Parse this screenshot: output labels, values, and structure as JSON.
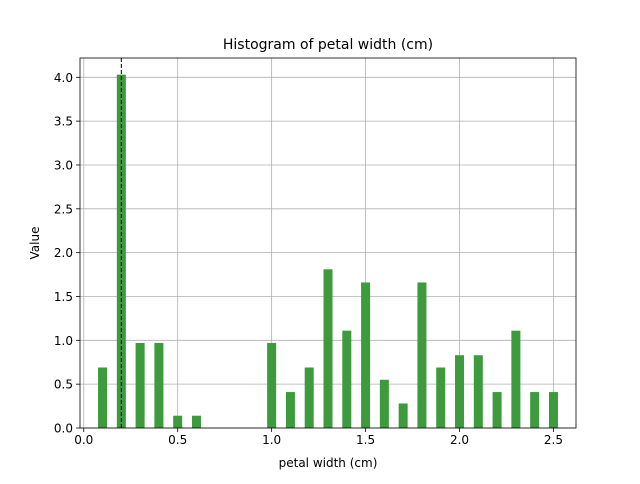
{
  "chart_data": {
    "type": "bar",
    "title": "Histogram of petal width (cm)",
    "xlabel": "petal width (cm)",
    "ylabel": "Value",
    "xlim": [
      -0.02,
      2.62
    ],
    "ylim": [
      0,
      4.22
    ],
    "xticks": [
      0.0,
      0.5,
      1.0,
      1.5,
      2.0,
      2.5
    ],
    "xtick_labels": [
      "0.0",
      "0.5",
      "1.0",
      "1.5",
      "2.0",
      "2.5"
    ],
    "yticks": [
      0.0,
      0.5,
      1.0,
      1.5,
      2.0,
      2.5,
      3.0,
      3.5,
      4.0
    ],
    "ytick_labels": [
      "0.0",
      "0.5",
      "1.0",
      "1.5",
      "2.0",
      "2.5",
      "3.0",
      "3.5",
      "4.0"
    ],
    "grid": true,
    "bar_color": "#3d9b3d",
    "bar_width": 0.048,
    "reference_line": {
      "x": 0.2,
      "style": "dashed",
      "color": "#000000"
    },
    "bins": [
      {
        "x": 0.1,
        "value": 0.69
      },
      {
        "x": 0.2,
        "value": 4.03
      },
      {
        "x": 0.3,
        "value": 0.97
      },
      {
        "x": 0.4,
        "value": 0.97
      },
      {
        "x": 0.5,
        "value": 0.14
      },
      {
        "x": 0.6,
        "value": 0.14
      },
      {
        "x": 1.0,
        "value": 0.97
      },
      {
        "x": 1.1,
        "value": 0.41
      },
      {
        "x": 1.2,
        "value": 0.69
      },
      {
        "x": 1.3,
        "value": 1.81
      },
      {
        "x": 1.4,
        "value": 1.11
      },
      {
        "x": 1.5,
        "value": 1.66
      },
      {
        "x": 1.6,
        "value": 0.55
      },
      {
        "x": 1.7,
        "value": 0.28
      },
      {
        "x": 1.8,
        "value": 1.66
      },
      {
        "x": 1.9,
        "value": 0.69
      },
      {
        "x": 2.0,
        "value": 0.83
      },
      {
        "x": 2.1,
        "value": 0.83
      },
      {
        "x": 2.2,
        "value": 0.41
      },
      {
        "x": 2.3,
        "value": 1.11
      },
      {
        "x": 2.4,
        "value": 0.41
      },
      {
        "x": 2.5,
        "value": 0.41
      }
    ]
  }
}
